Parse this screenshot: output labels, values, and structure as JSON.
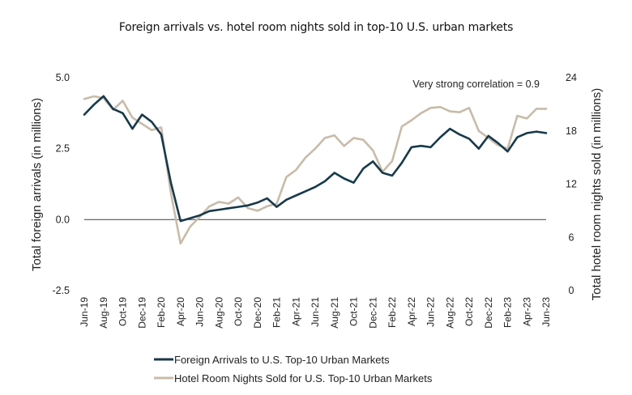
{
  "chart_data": {
    "type": "line",
    "title": "Foreign arrivals vs. hotel room nights sold in top-10 U.S. urban markets",
    "ylabel": "Total foreign arrivals (in millions)",
    "y2label": "Total hotel room nights sold (in millions)",
    "ylim": [
      -2.5,
      5.0
    ],
    "y2lim": [
      0,
      24
    ],
    "yticks": [
      "5.0",
      "2.5",
      "0.0",
      "-2.5"
    ],
    "y2ticks": [
      "24",
      "18",
      "12",
      "6",
      "0"
    ],
    "x_tick_labels": [
      "Jun-19",
      "Aug-19",
      "Oct-19",
      "Dec-19",
      "Feb-20",
      "Apr-20",
      "Jun-20",
      "Aug-20",
      "Oct-20",
      "Dec-20",
      "Feb-21",
      "Apr-21",
      "Jun-21",
      "Aug-21",
      "Oct-21",
      "Dec-21",
      "Feb-22",
      "Apr-22",
      "Jun-22",
      "Aug-22",
      "Oct-22",
      "Dec-22",
      "Feb-23",
      "Apr-23",
      "Jun-23"
    ],
    "x": [
      "Jun-19",
      "Jul-19",
      "Aug-19",
      "Sep-19",
      "Oct-19",
      "Nov-19",
      "Dec-19",
      "Jan-20",
      "Feb-20",
      "Mar-20",
      "Apr-20",
      "May-20",
      "Jun-20",
      "Jul-20",
      "Aug-20",
      "Sep-20",
      "Oct-20",
      "Nov-20",
      "Dec-20",
      "Jan-21",
      "Feb-21",
      "Mar-21",
      "Apr-21",
      "May-21",
      "Jun-21",
      "Jul-21",
      "Aug-21",
      "Sep-21",
      "Oct-21",
      "Nov-21",
      "Dec-21",
      "Jan-22",
      "Feb-22",
      "Mar-22",
      "Apr-22",
      "May-22",
      "Jun-22",
      "Jul-22",
      "Aug-22",
      "Sep-22",
      "Oct-22",
      "Nov-22",
      "Dec-22",
      "Jan-23",
      "Feb-23",
      "Mar-23",
      "Apr-23",
      "May-23",
      "Jun-23"
    ],
    "annotation": "Very strong correlation = 0.9",
    "legend": "bottom-left",
    "grid": false,
    "series": [
      {
        "name": "Foreign Arrivals to U.S. Top-10 Urban Markets",
        "axis": "left",
        "color": "#17394a",
        "values": [
          3.7,
          4.05,
          4.35,
          3.9,
          3.75,
          3.2,
          3.7,
          3.45,
          3.0,
          1.3,
          -0.05,
          0.05,
          0.15,
          0.3,
          0.35,
          0.4,
          0.45,
          0.5,
          0.6,
          0.75,
          0.45,
          0.7,
          0.85,
          1.0,
          1.15,
          1.35,
          1.65,
          1.45,
          1.3,
          1.8,
          2.05,
          1.65,
          1.55,
          2.0,
          2.55,
          2.6,
          2.55,
          2.9,
          3.2,
          3.0,
          2.85,
          2.5,
          2.95,
          2.7,
          2.4,
          2.9,
          3.05,
          3.1,
          3.05
        ]
      },
      {
        "name": "Hotel Room Nights Sold for U.S. Top-10 Urban Markets",
        "axis": "right",
        "color": "#c8bba9",
        "values": [
          21.6,
          21.9,
          21.7,
          20.4,
          21.4,
          19.5,
          18.8,
          18.1,
          18.4,
          11.0,
          5.3,
          7.2,
          8.3,
          9.5,
          10.0,
          9.8,
          10.5,
          9.3,
          9.0,
          9.5,
          9.8,
          12.8,
          13.6,
          15.0,
          16.0,
          17.2,
          17.5,
          16.3,
          17.2,
          17.0,
          15.8,
          13.4,
          14.6,
          18.5,
          19.2,
          20.0,
          20.6,
          20.7,
          20.2,
          20.1,
          20.6,
          18.0,
          17.2,
          16.4,
          16.0,
          19.7,
          19.4,
          20.5,
          20.5
        ]
      }
    ]
  }
}
